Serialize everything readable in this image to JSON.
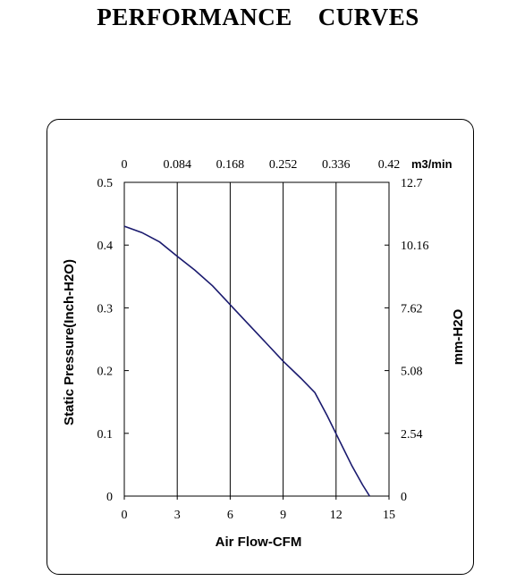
{
  "title": "PERFORMANCE    CURVES",
  "chart_data": {
    "type": "line",
    "title": "PERFORMANCE    CURVES",
    "xlabel": "Air Flow-CFM",
    "ylabel": "Static Pressure(Inch-H2O)",
    "x2label": "m3/min",
    "y2label": "mm-H2O",
    "xlim": [
      0,
      15
    ],
    "ylim": [
      0,
      0.5
    ],
    "x_ticks": [
      "0",
      "3",
      "6",
      "9",
      "12",
      "15"
    ],
    "y_ticks": [
      "0",
      "0.1",
      "0.2",
      "0.3",
      "0.4",
      "0.5"
    ],
    "x2_ticks": [
      "0",
      "0.084",
      "0.168",
      "0.252",
      "0.336",
      "0.42"
    ],
    "y2_ticks": [
      "0",
      "2.54",
      "5.08",
      "7.62",
      "10.16",
      "12.7"
    ],
    "grid": true,
    "line_color": "#1a1a6e",
    "series": [
      {
        "x": [
          0,
          1,
          2,
          3,
          4,
          5,
          6,
          7,
          8,
          9,
          10,
          10.8,
          11.5,
          12.2,
          12.9,
          13.5,
          13.9
        ],
        "y": [
          0.43,
          0.42,
          0.405,
          0.382,
          0.36,
          0.335,
          0.305,
          0.275,
          0.245,
          0.215,
          0.188,
          0.165,
          0.128,
          0.088,
          0.048,
          0.018,
          0
        ]
      }
    ]
  }
}
